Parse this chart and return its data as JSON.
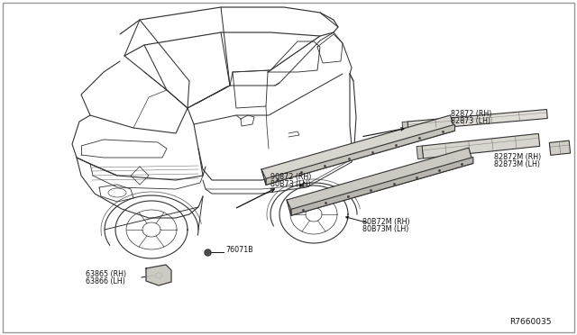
{
  "bg_color": "#ffffff",
  "border_color": "#888888",
  "ref_number": "R7660035",
  "labels": {
    "top_molding": [
      "82872 (RH)",
      "82873 (LH)"
    ],
    "mid_molding": [
      "82872M (RH)",
      "82873M (LH)"
    ],
    "lower_molding1": [
      "90872 (RH)",
      "80B73 (LH)"
    ],
    "lower_molding2": [
      "80B72M (RH)",
      "80B73M (LH)"
    ],
    "clip": "76071B",
    "bracket": [
      "63865 (RH)",
      "63866 (LH)"
    ]
  },
  "font_size_label": 5.8,
  "font_size_ref": 6.5,
  "text_color": "#111111",
  "car_line_color": "#333333",
  "part_line_color": "#333333",
  "arrow_color": "#111111",
  "part_fill": "#d8d5ce",
  "part_dark_fill": "#b0ada6"
}
